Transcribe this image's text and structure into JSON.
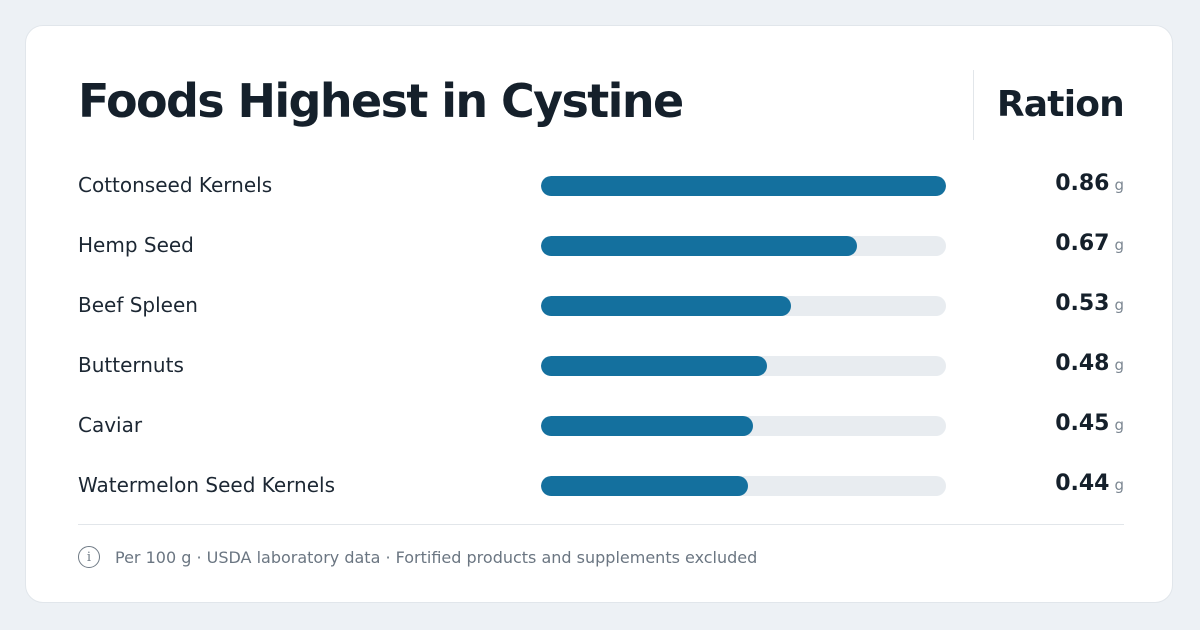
{
  "title": "Foods Highest in Cystine",
  "column_header": "Ration",
  "footnote": "Per 100 g · USDA laboratory data · Fortified products and supplements excluded",
  "icons": {
    "info": "info-icon"
  },
  "colors": {
    "bar": "#14709e",
    "track": "#e8ecf0",
    "text": "#15202b"
  },
  "chart_data": {
    "type": "bar",
    "orientation": "horizontal",
    "categories": [
      "Cottonseed Kernels",
      "Hemp Seed",
      "Beef Spleen",
      "Butternuts",
      "Caviar",
      "Watermelon Seed Kernels"
    ],
    "values": [
      0.86,
      0.67,
      0.53,
      0.48,
      0.45,
      0.44
    ],
    "value_labels": [
      "0.86",
      "0.67",
      "0.53",
      "0.48",
      "0.45",
      "0.44"
    ],
    "unit": "g",
    "xlim": [
      0,
      0.86
    ]
  }
}
